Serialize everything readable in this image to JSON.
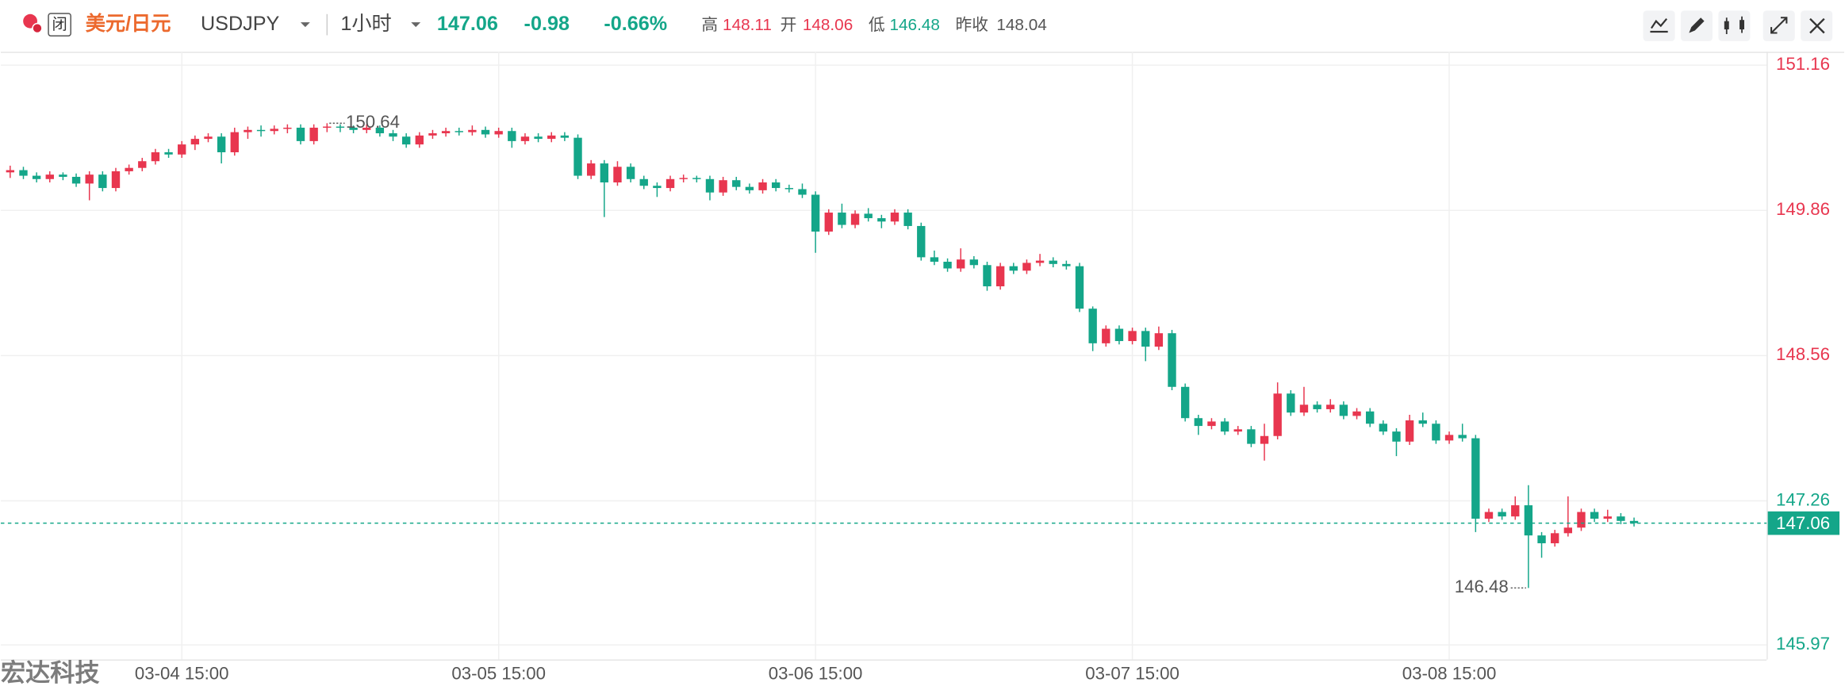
{
  "header": {
    "status": "闭",
    "name": "美元/日元",
    "symbol": "USDJPY",
    "interval": "1小时",
    "price": "147.06",
    "change": "-0.98",
    "change_pct": "-0.66%",
    "high_label": "高",
    "high": "148.11",
    "open_label": "开",
    "open": "148.06",
    "low_label": "低",
    "low": "146.48",
    "prev_close_label": "昨收",
    "prev_close": "148.04"
  },
  "watermark": "宏达科技",
  "chart_data": {
    "type": "candlestick",
    "up_color": "#e8364f",
    "down_color": "#14a689",
    "ylim": [
      145.84,
      151.28
    ],
    "yticks": [
      151.16,
      149.86,
      148.56,
      147.26,
      145.97
    ],
    "xlim": [
      -0.71,
      133.04
    ],
    "xticks": [
      {
        "value": 13,
        "label": "03-04 15:00"
      },
      {
        "value": 37,
        "label": "03-05 15:00"
      },
      {
        "value": 61,
        "label": "03-06 15:00"
      },
      {
        "value": 85,
        "label": "03-07 15:00"
      },
      {
        "value": 109,
        "label": "03-08 15:00"
      }
    ],
    "grid": true,
    "last_price": 147.06,
    "annotations": [
      {
        "candle": 24,
        "field": 1
      },
      {
        "candle": 115,
        "field": 2
      }
    ],
    "candles": [
      [
        150.2,
        150.26,
        150.15,
        150.22
      ],
      [
        150.22,
        150.25,
        150.14,
        150.17
      ],
      [
        150.17,
        150.2,
        150.11,
        150.14
      ],
      [
        150.14,
        150.21,
        150.11,
        150.18
      ],
      [
        150.18,
        150.2,
        150.13,
        150.16
      ],
      [
        150.16,
        150.19,
        150.07,
        150.1
      ],
      [
        150.1,
        150.21,
        149.95,
        150.18
      ],
      [
        150.18,
        150.21,
        150.03,
        150.06
      ],
      [
        150.06,
        150.24,
        150.03,
        150.21
      ],
      [
        150.21,
        150.27,
        150.18,
        150.24
      ],
      [
        150.24,
        150.33,
        150.21,
        150.3
      ],
      [
        150.3,
        150.41,
        150.27,
        150.38
      ],
      [
        150.38,
        150.41,
        150.33,
        150.36
      ],
      [
        150.36,
        150.48,
        150.33,
        150.45
      ],
      [
        150.45,
        150.53,
        150.4,
        150.5
      ],
      [
        150.5,
        150.55,
        150.47,
        150.52
      ],
      [
        150.52,
        150.55,
        150.28,
        150.38
      ],
      [
        150.38,
        150.6,
        150.35,
        150.56
      ],
      [
        150.56,
        150.61,
        150.5,
        150.58
      ],
      [
        150.58,
        150.62,
        150.52,
        150.57
      ],
      [
        150.57,
        150.62,
        150.54,
        150.59
      ],
      [
        150.59,
        150.63,
        150.55,
        150.6
      ],
      [
        150.6,
        150.63,
        150.45,
        150.48
      ],
      [
        150.48,
        150.63,
        150.45,
        150.6
      ],
      [
        150.6,
        150.64,
        150.56,
        150.61
      ],
      [
        150.61,
        150.63,
        150.56,
        150.6
      ],
      [
        150.6,
        150.62,
        150.55,
        150.58
      ],
      [
        150.58,
        150.63,
        150.55,
        150.6
      ],
      [
        150.6,
        150.62,
        150.52,
        150.55
      ],
      [
        150.55,
        150.58,
        150.48,
        150.52
      ],
      [
        150.52,
        150.55,
        150.42,
        150.45
      ],
      [
        150.45,
        150.56,
        150.42,
        150.53
      ],
      [
        150.53,
        150.58,
        150.5,
        150.55
      ],
      [
        150.55,
        150.6,
        150.52,
        150.57
      ],
      [
        150.57,
        150.6,
        150.53,
        150.56
      ],
      [
        150.56,
        150.62,
        150.53,
        150.58
      ],
      [
        150.58,
        150.61,
        150.51,
        150.54
      ],
      [
        150.54,
        150.6,
        150.51,
        150.57
      ],
      [
        150.57,
        150.6,
        150.42,
        150.48
      ],
      [
        150.48,
        150.55,
        150.45,
        150.52
      ],
      [
        150.52,
        150.55,
        150.47,
        150.5
      ],
      [
        150.5,
        150.56,
        150.47,
        150.53
      ],
      [
        150.53,
        150.56,
        150.48,
        150.51
      ],
      [
        150.51,
        150.54,
        150.14,
        150.17
      ],
      [
        150.17,
        150.31,
        150.14,
        150.28
      ],
      [
        150.28,
        150.31,
        149.8,
        150.11
      ],
      [
        150.11,
        150.3,
        150.08,
        150.25
      ],
      [
        150.25,
        150.28,
        150.11,
        150.14
      ],
      [
        150.14,
        150.17,
        150.05,
        150.08
      ],
      [
        150.08,
        150.11,
        149.98,
        150.06
      ],
      [
        150.06,
        150.17,
        150.03,
        150.14
      ],
      [
        150.14,
        150.18,
        150.11,
        150.15
      ],
      [
        150.15,
        150.17,
        150.11,
        150.14
      ],
      [
        150.14,
        150.17,
        149.95,
        150.02
      ],
      [
        150.02,
        150.16,
        149.99,
        150.13
      ],
      [
        150.13,
        150.16,
        150.04,
        150.07
      ],
      [
        150.07,
        150.1,
        150.01,
        150.04
      ],
      [
        150.04,
        150.14,
        150.01,
        150.11
      ],
      [
        150.11,
        150.14,
        150.03,
        150.06
      ],
      [
        150.06,
        150.09,
        150.02,
        150.05
      ],
      [
        150.05,
        150.1,
        149.97,
        150.0
      ],
      [
        150.0,
        150.03,
        149.48,
        149.67
      ],
      [
        149.67,
        149.87,
        149.64,
        149.84
      ],
      [
        149.84,
        149.92,
        149.7,
        149.73
      ],
      [
        149.73,
        149.86,
        149.7,
        149.83
      ],
      [
        149.83,
        149.88,
        149.76,
        149.79
      ],
      [
        149.79,
        149.82,
        149.7,
        149.76
      ],
      [
        149.76,
        149.87,
        149.73,
        149.84
      ],
      [
        149.84,
        149.87,
        149.69,
        149.72
      ],
      [
        149.72,
        149.75,
        149.41,
        149.44
      ],
      [
        149.44,
        149.5,
        149.37,
        149.4
      ],
      [
        149.4,
        149.43,
        149.31,
        149.34
      ],
      [
        149.34,
        149.52,
        149.31,
        149.42
      ],
      [
        149.42,
        149.45,
        149.34,
        149.37
      ],
      [
        149.37,
        149.4,
        149.14,
        149.18
      ],
      [
        149.18,
        149.39,
        149.15,
        149.36
      ],
      [
        149.36,
        149.39,
        149.29,
        149.32
      ],
      [
        149.32,
        149.42,
        149.29,
        149.39
      ],
      [
        149.39,
        149.47,
        149.36,
        149.41
      ],
      [
        149.41,
        149.44,
        149.35,
        149.38
      ],
      [
        149.38,
        149.41,
        149.33,
        149.36
      ],
      [
        149.36,
        149.39,
        148.95,
        148.98
      ],
      [
        148.98,
        149.0,
        148.6,
        148.67
      ],
      [
        148.67,
        148.83,
        148.64,
        148.8
      ],
      [
        148.8,
        148.83,
        148.66,
        148.69
      ],
      [
        148.69,
        148.81,
        148.66,
        148.78
      ],
      [
        148.78,
        148.81,
        148.51,
        148.64
      ],
      [
        148.64,
        148.82,
        148.61,
        148.76
      ],
      [
        148.76,
        148.79,
        148.25,
        148.28
      ],
      [
        148.28,
        148.31,
        147.97,
        148.0
      ],
      [
        148.0,
        148.03,
        147.85,
        147.93
      ],
      [
        147.93,
        148.0,
        147.9,
        147.97
      ],
      [
        147.97,
        148.0,
        147.85,
        147.88
      ],
      [
        147.88,
        147.93,
        147.85,
        147.9
      ],
      [
        147.9,
        147.93,
        147.74,
        147.77
      ],
      [
        147.77,
        147.95,
        147.62,
        147.84
      ],
      [
        147.84,
        148.32,
        147.81,
        148.22
      ],
      [
        148.22,
        148.25,
        148.02,
        148.05
      ],
      [
        148.05,
        148.28,
        148.02,
        148.12
      ],
      [
        148.12,
        148.15,
        148.05,
        148.08
      ],
      [
        148.08,
        148.17,
        148.05,
        148.12
      ],
      [
        148.12,
        148.15,
        147.99,
        148.02
      ],
      [
        148.02,
        148.09,
        147.99,
        148.06
      ],
      [
        148.06,
        148.09,
        147.92,
        147.95
      ],
      [
        147.95,
        147.98,
        147.85,
        147.88
      ],
      [
        147.88,
        147.91,
        147.66,
        147.79
      ],
      [
        147.79,
        148.03,
        147.76,
        147.98
      ],
      [
        147.98,
        148.05,
        147.92,
        147.95
      ],
      [
        147.95,
        147.98,
        147.77,
        147.8
      ],
      [
        147.8,
        147.88,
        147.77,
        147.85
      ],
      [
        147.85,
        147.95,
        147.79,
        147.82
      ],
      [
        147.82,
        147.85,
        146.98,
        147.1
      ],
      [
        147.1,
        147.19,
        147.07,
        147.16
      ],
      [
        147.16,
        147.19,
        147.09,
        147.12
      ],
      [
        147.12,
        147.3,
        147.09,
        147.22
      ],
      [
        147.22,
        147.4,
        146.48,
        146.95
      ],
      [
        146.95,
        146.98,
        146.75,
        146.88
      ],
      [
        146.88,
        147.0,
        146.85,
        146.97
      ],
      [
        146.97,
        147.3,
        146.94,
        147.02
      ],
      [
        147.02,
        147.19,
        146.99,
        147.16
      ],
      [
        147.16,
        147.19,
        147.07,
        147.1
      ],
      [
        147.1,
        147.18,
        147.07,
        147.12
      ],
      [
        147.12,
        147.15,
        147.05,
        147.08
      ],
      [
        147.08,
        147.11,
        147.03,
        147.06
      ]
    ]
  }
}
